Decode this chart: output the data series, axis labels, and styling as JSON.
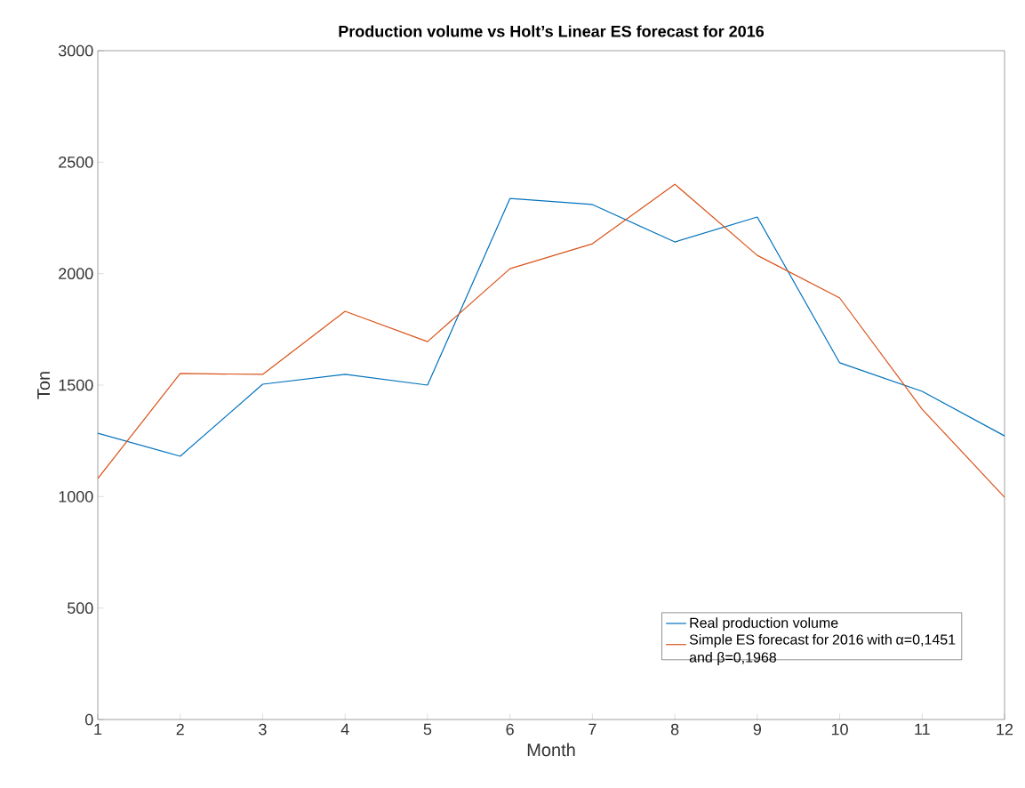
{
  "chart_data": {
    "type": "line",
    "title": "Production volume vs Holt’s Linear ES forecast for 2016",
    "xlabel": "Month",
    "ylabel": "Ton",
    "x": [
      1,
      2,
      3,
      4,
      5,
      6,
      7,
      8,
      9,
      10,
      11,
      12
    ],
    "series": [
      {
        "name": "Real production volume",
        "color": "#0072bd",
        "values": [
          1284,
          1181,
          1504,
          1548,
          1500,
          2337,
          2310,
          2142,
          2254,
          1600,
          1472,
          1272
        ]
      },
      {
        "name": "Simple ES forecast for 2016 with α=0,1451 and β=0,1968",
        "color": "#d95319",
        "values": [
          1081,
          1552,
          1548,
          1831,
          1695,
          2022,
          2134,
          2401,
          2082,
          1891,
          1392,
          997
        ]
      }
    ],
    "xlim": [
      1,
      12
    ],
    "xticks": [
      1,
      2,
      3,
      4,
      5,
      6,
      7,
      8,
      9,
      10,
      11,
      12
    ],
    "ylim": [
      0,
      3000
    ],
    "yticks": [
      0,
      500,
      1000,
      1500,
      2000,
      2500,
      3000
    ],
    "grid": false,
    "legend": "bottom right",
    "marker": "none",
    "line_style": "solid"
  }
}
